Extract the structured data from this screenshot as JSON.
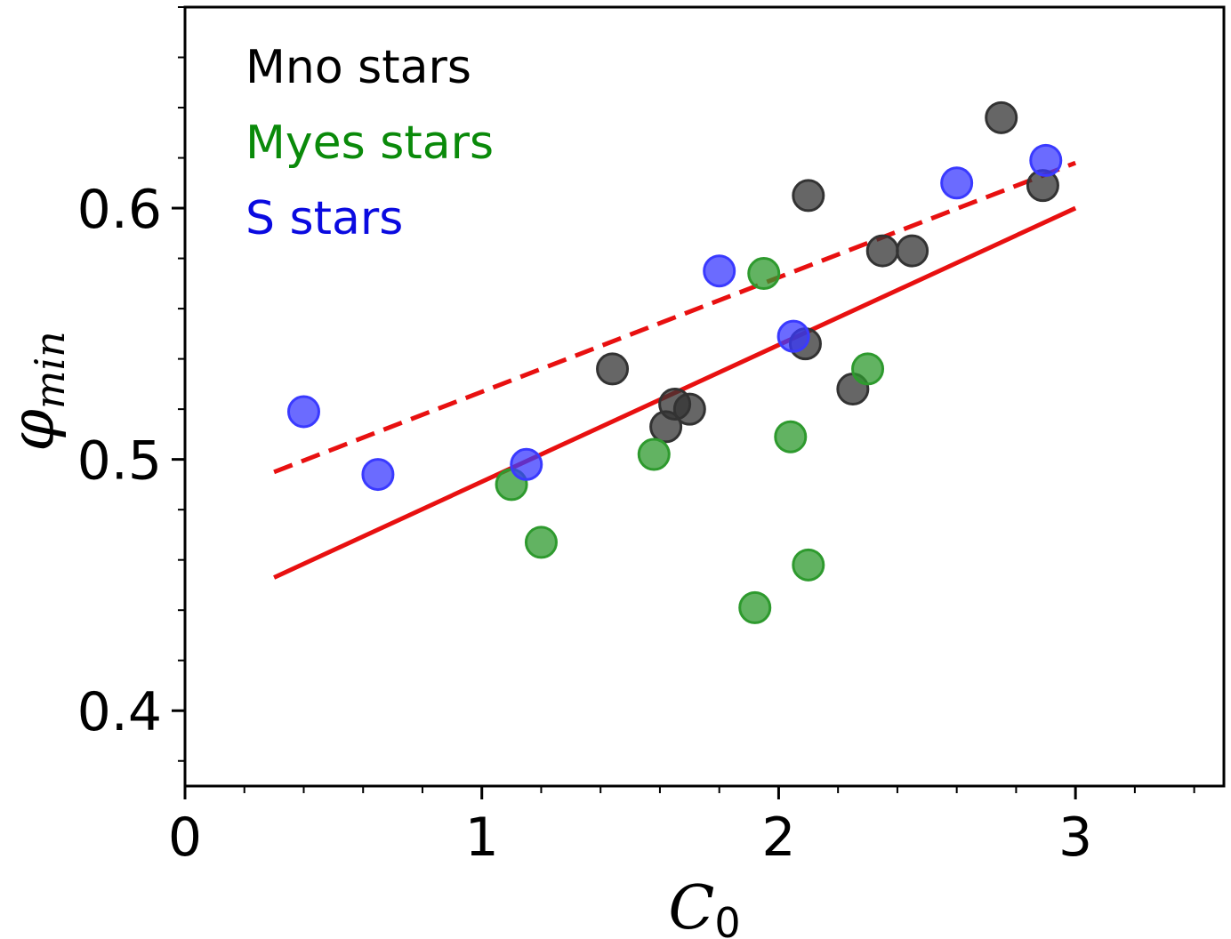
{
  "chart_data": {
    "type": "scatter",
    "title": "",
    "xlabel": {
      "main": "C",
      "sub": "0"
    },
    "ylabel": {
      "main": "φ",
      "sub": "min"
    },
    "xlim": [
      0,
      3.5
    ],
    "ylim": [
      0.37,
      0.68
    ],
    "x_ticks": [
      {
        "value": 0,
        "label": "0"
      },
      {
        "value": 1,
        "label": "1"
      },
      {
        "value": 2,
        "label": "2"
      },
      {
        "value": 3,
        "label": "3"
      }
    ],
    "y_ticks": [
      {
        "value": 0.4,
        "label": "0.4"
      },
      {
        "value": 0.5,
        "label": "0.5"
      },
      {
        "value": 0.6,
        "label": "0.6"
      }
    ],
    "x_minor_step": 0.2,
    "y_minor_step": 0.02,
    "grid": false,
    "legend_position": "top-left",
    "series": [
      {
        "name": "Mno stars",
        "color": "#333333",
        "points": [
          [
            1.44,
            0.536
          ],
          [
            1.62,
            0.513
          ],
          [
            1.65,
            0.522
          ],
          [
            1.7,
            0.52
          ],
          [
            2.09,
            0.546
          ],
          [
            2.1,
            0.605
          ],
          [
            2.25,
            0.528
          ],
          [
            2.35,
            0.583
          ],
          [
            2.45,
            0.583
          ],
          [
            2.75,
            0.636
          ],
          [
            2.89,
            0.609
          ]
        ]
      },
      {
        "name": "Myes stars",
        "color": "#2e9a2e",
        "points": [
          [
            1.1,
            0.49
          ],
          [
            1.2,
            0.467
          ],
          [
            1.58,
            0.502
          ],
          [
            1.92,
            0.441
          ],
          [
            1.95,
            0.574
          ],
          [
            2.04,
            0.509
          ],
          [
            2.1,
            0.458
          ],
          [
            2.3,
            0.536
          ]
        ]
      },
      {
        "name": "S stars",
        "color": "#3a3aff",
        "points": [
          [
            0.4,
            0.519
          ],
          [
            0.65,
            0.494
          ],
          [
            1.15,
            0.498
          ],
          [
            1.8,
            0.575
          ],
          [
            2.05,
            0.549
          ],
          [
            2.6,
            0.61
          ],
          [
            2.9,
            0.619
          ]
        ]
      }
    ],
    "fit_lines": [
      {
        "name": "fit-solid",
        "style": "solid",
        "color": "#e81010",
        "x": [
          0.3,
          3.0
        ],
        "y": [
          0.453,
          0.6
        ]
      },
      {
        "name": "fit-dashed",
        "style": "dashed",
        "color": "#e81010",
        "x": [
          0.3,
          3.0
        ],
        "y": [
          0.495,
          0.618
        ]
      }
    ],
    "legend_colors": [
      "#000000",
      "#0a8a0a",
      "#0a0ae0"
    ]
  }
}
